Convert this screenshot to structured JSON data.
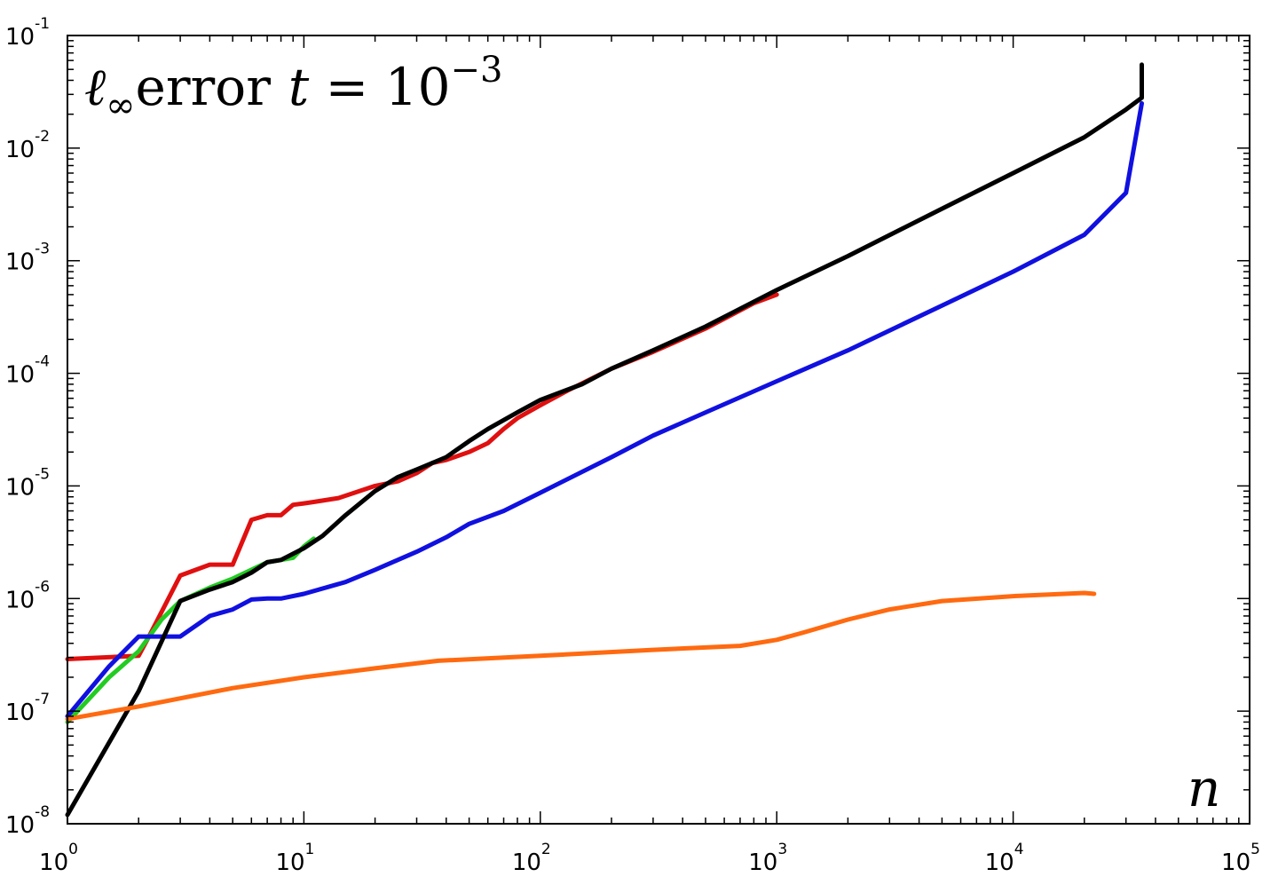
{
  "chart_data": {
    "type": "line",
    "title": {
      "prefix": "ℓ",
      "subscript": "∞",
      "main": "error",
      "var": "t",
      "equals": " = 10",
      "exponent": "−3"
    },
    "xlabel": "n",
    "ylabel": "",
    "x_scale": "log",
    "y_scale": "log",
    "xlim": [
      1,
      100000
    ],
    "ylim": [
      1e-08,
      0.1
    ],
    "grid": false,
    "x_ticks": [
      {
        "value": 1,
        "base": "10",
        "exp": "0"
      },
      {
        "value": 10,
        "base": "10",
        "exp": "1"
      },
      {
        "value": 100,
        "base": "10",
        "exp": "2"
      },
      {
        "value": 1000,
        "base": "10",
        "exp": "3"
      },
      {
        "value": 10000,
        "base": "10",
        "exp": "4"
      },
      {
        "value": 100000,
        "base": "10",
        "exp": "5"
      }
    ],
    "y_ticks": [
      {
        "value": 1e-08,
        "base": "10",
        "exp": "-8"
      },
      {
        "value": 1e-07,
        "base": "10",
        "exp": "-7"
      },
      {
        "value": 1e-06,
        "base": "10",
        "exp": "-6"
      },
      {
        "value": 1e-05,
        "base": "10",
        "exp": "-5"
      },
      {
        "value": 0.0001,
        "base": "10",
        "exp": "-4"
      },
      {
        "value": 0.001,
        "base": "10",
        "exp": "-3"
      },
      {
        "value": 0.01,
        "base": "10",
        "exp": "-2"
      },
      {
        "value": 0.1,
        "base": "10",
        "exp": "-1"
      }
    ],
    "series": [
      {
        "color": "#e01010",
        "x": [
          1,
          2,
          2.2,
          3,
          4,
          5,
          6,
          7,
          8,
          9,
          10,
          11,
          14,
          20,
          25,
          30,
          35,
          40,
          50,
          60,
          70,
          80,
          100,
          130,
          200,
          300,
          500,
          800,
          1000
        ],
        "y": [
          2.9e-07,
          3.1e-07,
          4.5e-07,
          1.6e-06,
          2e-06,
          2e-06,
          5e-06,
          5.5e-06,
          5.5e-06,
          6.8e-06,
          7e-06,
          7.2e-06,
          7.8e-06,
          1e-05,
          1.1e-05,
          1.3e-05,
          1.6e-05,
          1.7e-05,
          2e-05,
          2.4e-05,
          3.2e-05,
          4e-05,
          5.2e-05,
          7e-05,
          0.00011,
          0.000155,
          0.00025,
          0.00042,
          0.0005
        ]
      },
      {
        "color": "#22cc22",
        "x": [
          1,
          1.5,
          2,
          2.5,
          3,
          4,
          5,
          6,
          7,
          8,
          9,
          10,
          11
        ],
        "y": [
          8e-08,
          2e-07,
          3.4e-07,
          6.5e-07,
          9.5e-07,
          1.25e-06,
          1.5e-06,
          1.8e-06,
          2.1e-06,
          2.2e-06,
          2.3e-06,
          2.9e-06,
          3.4e-06
        ]
      },
      {
        "color": "#1010e0",
        "x": [
          1,
          1.5,
          2,
          3,
          4,
          5,
          6,
          7,
          8,
          10,
          15,
          20,
          30,
          40,
          50,
          70,
          100,
          200,
          300,
          500,
          1000,
          2000,
          5000,
          10000,
          20000,
          30000,
          35000
        ],
        "y": [
          9e-08,
          2.5e-07,
          4.6e-07,
          4.6e-07,
          7e-07,
          8e-07,
          9.8e-07,
          1e-06,
          1e-06,
          1.1e-06,
          1.4e-06,
          1.8e-06,
          2.6e-06,
          3.5e-06,
          4.6e-06,
          6e-06,
          8.7e-06,
          1.8e-05,
          2.8e-05,
          4.5e-05,
          8.5e-05,
          0.00016,
          0.0004,
          0.0008,
          0.0017,
          0.004,
          0.025
        ]
      },
      {
        "color": "#000000",
        "x": [
          1,
          2,
          3,
          4,
          5,
          6,
          7,
          8,
          10,
          12,
          15,
          20,
          25,
          30,
          40,
          50,
          60,
          80,
          100,
          150,
          200,
          300,
          500,
          1000,
          2000,
          5000,
          10000,
          20000,
          30000,
          35000,
          35000
        ],
        "y": [
          1.2e-08,
          1.5e-07,
          9.5e-07,
          1.2e-06,
          1.4e-06,
          1.7e-06,
          2.1e-06,
          2.2e-06,
          2.8e-06,
          3.6e-06,
          5.5e-06,
          9e-06,
          1.2e-05,
          1.4e-05,
          1.8e-05,
          2.5e-05,
          3.2e-05,
          4.5e-05,
          5.8e-05,
          8e-05,
          0.00011,
          0.00016,
          0.00026,
          0.00055,
          0.0011,
          0.0029,
          0.006,
          0.0125,
          0.022,
          0.028,
          0.055
        ]
      },
      {
        "color": "#ff6a10",
        "x": [
          1,
          2,
          5,
          10,
          20,
          37,
          100,
          300,
          700,
          1000,
          1300,
          2000,
          3000,
          5000,
          10000,
          20000,
          22000
        ],
        "y": [
          8.5e-08,
          1.1e-07,
          1.6e-07,
          2e-07,
          2.4e-07,
          2.8e-07,
          3.1e-07,
          3.5e-07,
          3.8e-07,
          4.3e-07,
          5e-07,
          6.5e-07,
          8e-07,
          9.5e-07,
          1.05e-06,
          1.12e-06,
          1.1e-06
        ]
      }
    ]
  }
}
